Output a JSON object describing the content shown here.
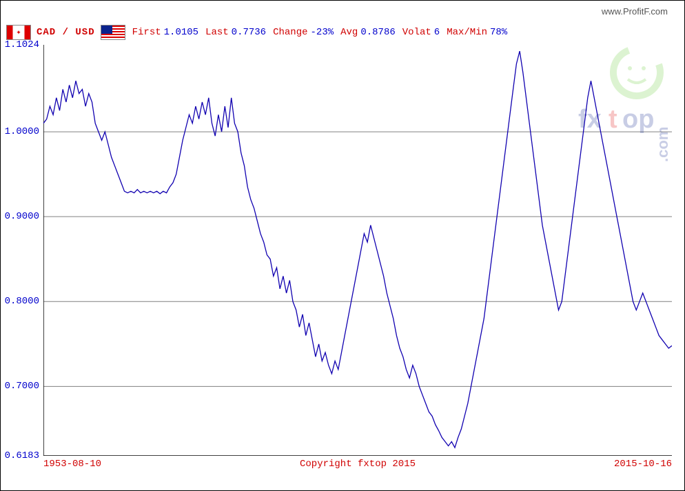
{
  "site_url": "www.ProfitF.com",
  "pair_label": "CAD / USD",
  "flags": {
    "left": "canada",
    "right": "usa"
  },
  "stats": {
    "first_label": "First",
    "first_val": "1.0105",
    "last_label": "Last",
    "last_val": "0.7736",
    "change_label": "Change",
    "change_val": "-23%",
    "avg_label": "Avg",
    "avg_val": "0.8786",
    "volat_label": "Volat",
    "volat_val": "6",
    "mm_label": "Max/Min",
    "mm_val": "78%"
  },
  "chart": {
    "type": "line",
    "line_color": "#1000b0",
    "line_width": 1.3,
    "background": "#ffffff",
    "grid_color": "#808080",
    "axis_color": "#000000",
    "ylim": [
      0.6183,
      1.1024
    ],
    "y_ticks": [
      0.6183,
      0.7,
      0.8,
      0.9,
      1.0,
      1.1024
    ],
    "x_start_label": "1953-08-10",
    "x_end_label": "2015-10-16",
    "x_center_label": "Copyright fxtop 2015",
    "series": [
      1.01,
      1.015,
      1.03,
      1.02,
      1.04,
      1.025,
      1.05,
      1.035,
      1.055,
      1.04,
      1.06,
      1.045,
      1.05,
      1.03,
      1.045,
      1.035,
      1.01,
      1.0,
      0.99,
      1.0,
      0.985,
      0.97,
      0.96,
      0.95,
      0.94,
      0.93,
      0.928,
      0.93,
      0.928,
      0.932,
      0.928,
      0.93,
      0.928,
      0.93,
      0.928,
      0.93,
      0.927,
      0.93,
      0.928,
      0.935,
      0.94,
      0.95,
      0.97,
      0.99,
      1.005,
      1.02,
      1.01,
      1.03,
      1.015,
      1.035,
      1.02,
      1.04,
      1.01,
      0.995,
      1.02,
      1.0,
      1.03,
      1.005,
      1.04,
      1.01,
      1.0,
      0.975,
      0.96,
      0.935,
      0.92,
      0.91,
      0.895,
      0.88,
      0.87,
      0.855,
      0.85,
      0.83,
      0.84,
      0.815,
      0.83,
      0.81,
      0.825,
      0.8,
      0.79,
      0.77,
      0.785,
      0.76,
      0.775,
      0.755,
      0.735,
      0.75,
      0.73,
      0.74,
      0.725,
      0.715,
      0.73,
      0.72,
      0.74,
      0.76,
      0.78,
      0.8,
      0.82,
      0.84,
      0.86,
      0.88,
      0.87,
      0.89,
      0.875,
      0.86,
      0.845,
      0.83,
      0.81,
      0.795,
      0.78,
      0.76,
      0.745,
      0.735,
      0.72,
      0.71,
      0.725,
      0.715,
      0.7,
      0.69,
      0.68,
      0.67,
      0.665,
      0.655,
      0.648,
      0.64,
      0.635,
      0.63,
      0.635,
      0.628,
      0.64,
      0.65,
      0.665,
      0.68,
      0.7,
      0.72,
      0.74,
      0.76,
      0.78,
      0.81,
      0.84,
      0.87,
      0.9,
      0.93,
      0.96,
      0.99,
      1.02,
      1.05,
      1.08,
      1.095,
      1.07,
      1.04,
      1.01,
      0.98,
      0.95,
      0.92,
      0.89,
      0.87,
      0.85,
      0.83,
      0.81,
      0.79,
      0.8,
      0.83,
      0.86,
      0.89,
      0.92,
      0.95,
      0.98,
      1.01,
      1.04,
      1.06,
      1.04,
      1.02,
      1.0,
      0.98,
      0.96,
      0.94,
      0.92,
      0.9,
      0.88,
      0.86,
      0.84,
      0.82,
      0.8,
      0.79,
      0.8,
      0.81,
      0.8,
      0.79,
      0.78,
      0.77,
      0.76,
      0.755,
      0.75,
      0.745,
      0.748
    ]
  },
  "watermark": {
    "text_top": "€",
    "text_main": "fxtop",
    "text_side": ".com",
    "color_circle": "#66cc33",
    "color_text": "#0b228c",
    "color_x": "#d00"
  }
}
